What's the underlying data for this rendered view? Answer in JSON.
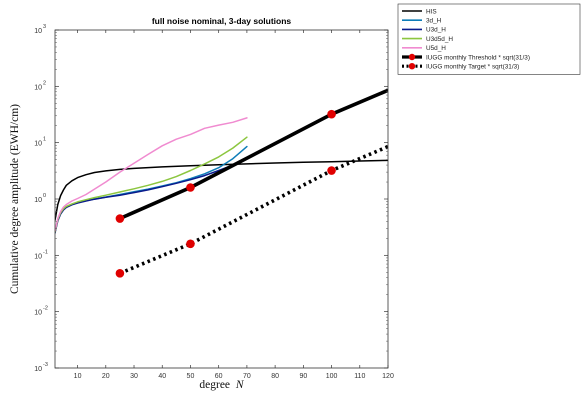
{
  "chart_data": {
    "type": "line",
    "title": "full noise nominal, 3-day solutions",
    "xlabel": "degree",
    "xlabel_var": "N",
    "ylabel": "Cumulative degree amplitude (EWH/cm)",
    "xlim": [
      2,
      120
    ],
    "ylim": [
      0.001,
      1000
    ],
    "yscale": "log",
    "x_ticks": [
      "10",
      "20",
      "30",
      "40",
      "50",
      "60",
      "70",
      "80",
      "90",
      "100",
      "110",
      "120"
    ],
    "y_ticks": [
      {
        "base": "10",
        "exp": "-3"
      },
      {
        "base": "10",
        "exp": "-2"
      },
      {
        "base": "10",
        "exp": "-1"
      },
      {
        "base": "10",
        "exp": "0"
      },
      {
        "base": "10",
        "exp": "1"
      },
      {
        "base": "10",
        "exp": "2"
      },
      {
        "base": "10",
        "exp": "3"
      }
    ],
    "grid": false,
    "legend_position": "outside-top-right",
    "series": [
      {
        "name": "HIS",
        "color": "#000000",
        "style": "solid",
        "x": [
          2,
          3,
          4,
          5,
          6,
          8,
          10,
          13,
          16,
          20,
          25,
          30,
          40,
          50,
          60,
          70,
          80,
          90,
          100,
          110,
          120
        ],
        "y": [
          0.42,
          0.8,
          1.15,
          1.45,
          1.75,
          2.1,
          2.4,
          2.7,
          2.95,
          3.15,
          3.35,
          3.5,
          3.72,
          3.9,
          4.05,
          4.2,
          4.35,
          4.48,
          4.6,
          4.72,
          4.85
        ]
      },
      {
        "name": "3d_H",
        "color": "#0e7db8",
        "style": "solid",
        "x": [
          2,
          3,
          4,
          5,
          6,
          8,
          10,
          13,
          16,
          20,
          25,
          30,
          35,
          40,
          45,
          50,
          55,
          60,
          65,
          70
        ],
        "y": [
          0.26,
          0.42,
          0.55,
          0.65,
          0.72,
          0.8,
          0.86,
          0.93,
          1.0,
          1.08,
          1.2,
          1.35,
          1.5,
          1.7,
          1.95,
          2.3,
          2.8,
          3.6,
          5.2,
          8.5
        ]
      },
      {
        "name": "U3d_H",
        "color": "#0a1a8c",
        "style": "solid",
        "x": [
          2,
          3,
          4,
          5,
          6,
          8,
          10,
          13,
          16,
          20,
          25,
          30,
          35,
          40,
          45,
          50,
          55,
          60,
          65,
          70
        ],
        "y": [
          0.25,
          0.41,
          0.54,
          0.64,
          0.71,
          0.79,
          0.85,
          0.92,
          0.99,
          1.07,
          1.17,
          1.3,
          1.45,
          1.65,
          1.9,
          2.2,
          2.6,
          3.2,
          4.0,
          5.2
        ]
      },
      {
        "name": "U3d5d_H",
        "color": "#8cc63f",
        "style": "solid",
        "x": [
          2,
          3,
          4,
          5,
          6,
          8,
          10,
          13,
          16,
          20,
          25,
          30,
          35,
          40,
          45,
          50,
          55,
          60,
          65,
          70
        ],
        "y": [
          0.26,
          0.43,
          0.57,
          0.67,
          0.74,
          0.82,
          0.89,
          0.97,
          1.06,
          1.17,
          1.33,
          1.52,
          1.75,
          2.05,
          2.5,
          3.2,
          4.2,
          5.6,
          8.0,
          12.5
        ]
      },
      {
        "name": "U5d_H",
        "color": "#f08bd0",
        "style": "solid",
        "x": [
          2,
          3,
          4,
          5,
          6,
          8,
          10,
          13,
          16,
          20,
          25,
          30,
          35,
          40,
          45,
          50,
          55,
          60,
          65,
          70
        ],
        "y": [
          0.27,
          0.45,
          0.6,
          0.72,
          0.8,
          0.92,
          1.02,
          1.2,
          1.5,
          2.0,
          3.0,
          4.3,
          6.2,
          8.8,
          11.5,
          14.0,
          18.0,
          20.5,
          23.0,
          27.5
        ]
      },
      {
        "name": "IUGG monthly Threshold * sqrt(31/3)",
        "color": "#000000",
        "style": "solid-thick",
        "markers": true,
        "x": [
          25,
          50,
          100,
          120
        ],
        "y": [
          0.45,
          1.6,
          32,
          85
        ],
        "marker_x": [
          25,
          50,
          100
        ],
        "marker_y": [
          0.45,
          1.6,
          32
        ]
      },
      {
        "name": "IUGG monthly Target * sqrt(31/3)",
        "color": "#000000",
        "style": "dotted-thick",
        "markers": true,
        "x": [
          25,
          50,
          100,
          120
        ],
        "y": [
          0.048,
          0.16,
          3.2,
          8.5
        ],
        "marker_x": [
          25,
          50,
          100
        ],
        "marker_y": [
          0.048,
          0.16,
          3.2
        ]
      }
    ]
  }
}
